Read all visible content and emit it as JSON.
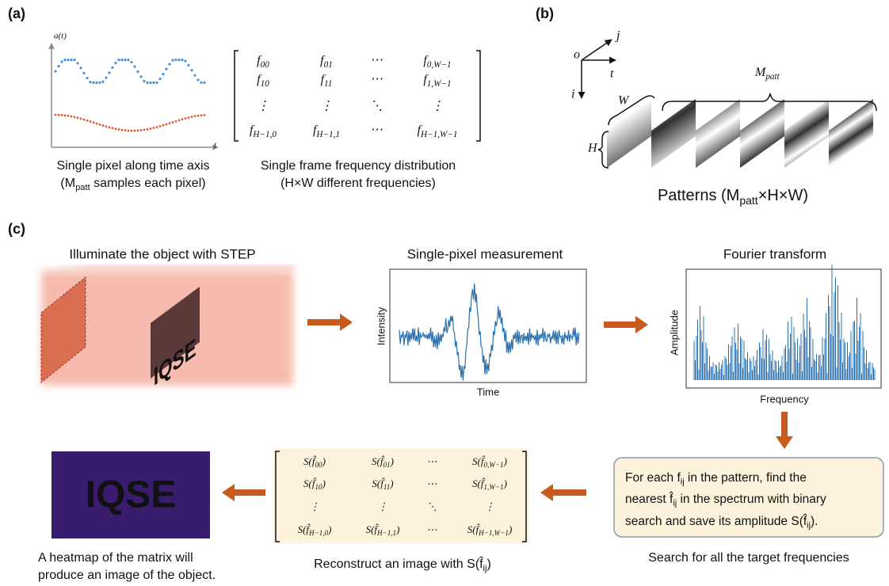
{
  "panel_a": {
    "label": "(a)",
    "y_axis": "a(t)",
    "x_axis": "t",
    "caption_left": [
      "Single pixel along time axis",
      {
        "pre": "(M",
        "sub": "patt",
        "post": " samples each pixel)"
      }
    ],
    "matrix": [
      [
        {
          "pre": "f",
          "sub": "00"
        },
        {
          "pre": "f",
          "sub": "01"
        },
        "⋯",
        {
          "pre": "f",
          "sub": "0,W−1"
        }
      ],
      [
        {
          "pre": "f",
          "sub": "10"
        },
        {
          "pre": "f",
          "sub": "11"
        },
        "⋯",
        {
          "pre": "f",
          "sub": "1,W−1"
        }
      ],
      [
        "⋮",
        "⋮",
        "⋱",
        "⋮"
      ],
      [
        {
          "pre": "f",
          "sub": "H−1,0"
        },
        {
          "pre": "f",
          "sub": "H−1,1"
        },
        "⋯",
        {
          "pre": "f",
          "sub": "H−1,W−1"
        }
      ]
    ],
    "caption_right": [
      "Single frame frequency distribution",
      "(H×W different frequencies)"
    ]
  },
  "panel_b": {
    "label": "(b)",
    "axes": {
      "origin": "o",
      "j": "j",
      "t": "t",
      "i": "i"
    },
    "width": "W",
    "height": "H",
    "count": {
      "pre": "M",
      "sub": "patt"
    },
    "caption": {
      "pre": "Patterns (M",
      "sub": "patt",
      "post": "×H×W)"
    }
  },
  "panel_c": {
    "label": "(c)",
    "illuminate": {
      "title": "Illuminate the object with STEP",
      "object_text": "IQSE"
    },
    "measurement": {
      "title": "Single-pixel measurement",
      "y_label": "Intensity",
      "x_label": "Time"
    },
    "fourier": {
      "title": "Fourier transform",
      "y_label": "Amplitude",
      "x_label": "Frequency"
    },
    "search": {
      "lines": [
        {
          "pre": "For each f",
          "sub": "ij",
          "post": " in the pattern, find the"
        },
        {
          "pre": "nearest f̂",
          "sub": "ij",
          "post": " in the spectrum with binary"
        },
        {
          "pre": "search and save its amplitude S(f̂",
          "sub": "ij",
          "post": ")."
        }
      ],
      "caption": "Search for all the target frequencies"
    },
    "reconstruct": {
      "matrix": [
        [
          {
            "pre": "S(f̂",
            "sub": "00",
            "post": ")"
          },
          {
            "pre": "S(f̂",
            "sub": "01",
            "post": ")"
          },
          "⋯",
          {
            "pre": "S(f̂",
            "sub": "0,W−1",
            "post": ")"
          }
        ],
        [
          {
            "pre": "S(f̂",
            "sub": "10",
            "post": ")"
          },
          {
            "pre": "S(f̂",
            "sub": "11",
            "post": ")"
          },
          "⋯",
          {
            "pre": "S(f̂",
            "sub": "1,W−1",
            "post": ")"
          }
        ],
        [
          "⋮",
          "⋮",
          "⋱",
          "⋮"
        ],
        [
          {
            "pre": "S(f̂",
            "sub": "H−1,0",
            "post": ")"
          },
          {
            "pre": "S(f̂",
            "sub": "H−1,1",
            "post": ")"
          },
          "⋯",
          {
            "pre": "S(f̂",
            "sub": "H−1,W−1",
            "post": ")"
          }
        ]
      ],
      "caption": {
        "pre": "Reconstruct an image with S(f̂",
        "sub": "ij",
        "post": ")"
      }
    },
    "heatmap": {
      "image_text": "IQSE",
      "caption": [
        "A heatmap of the matrix will",
        "produce an image of the object."
      ]
    }
  }
}
